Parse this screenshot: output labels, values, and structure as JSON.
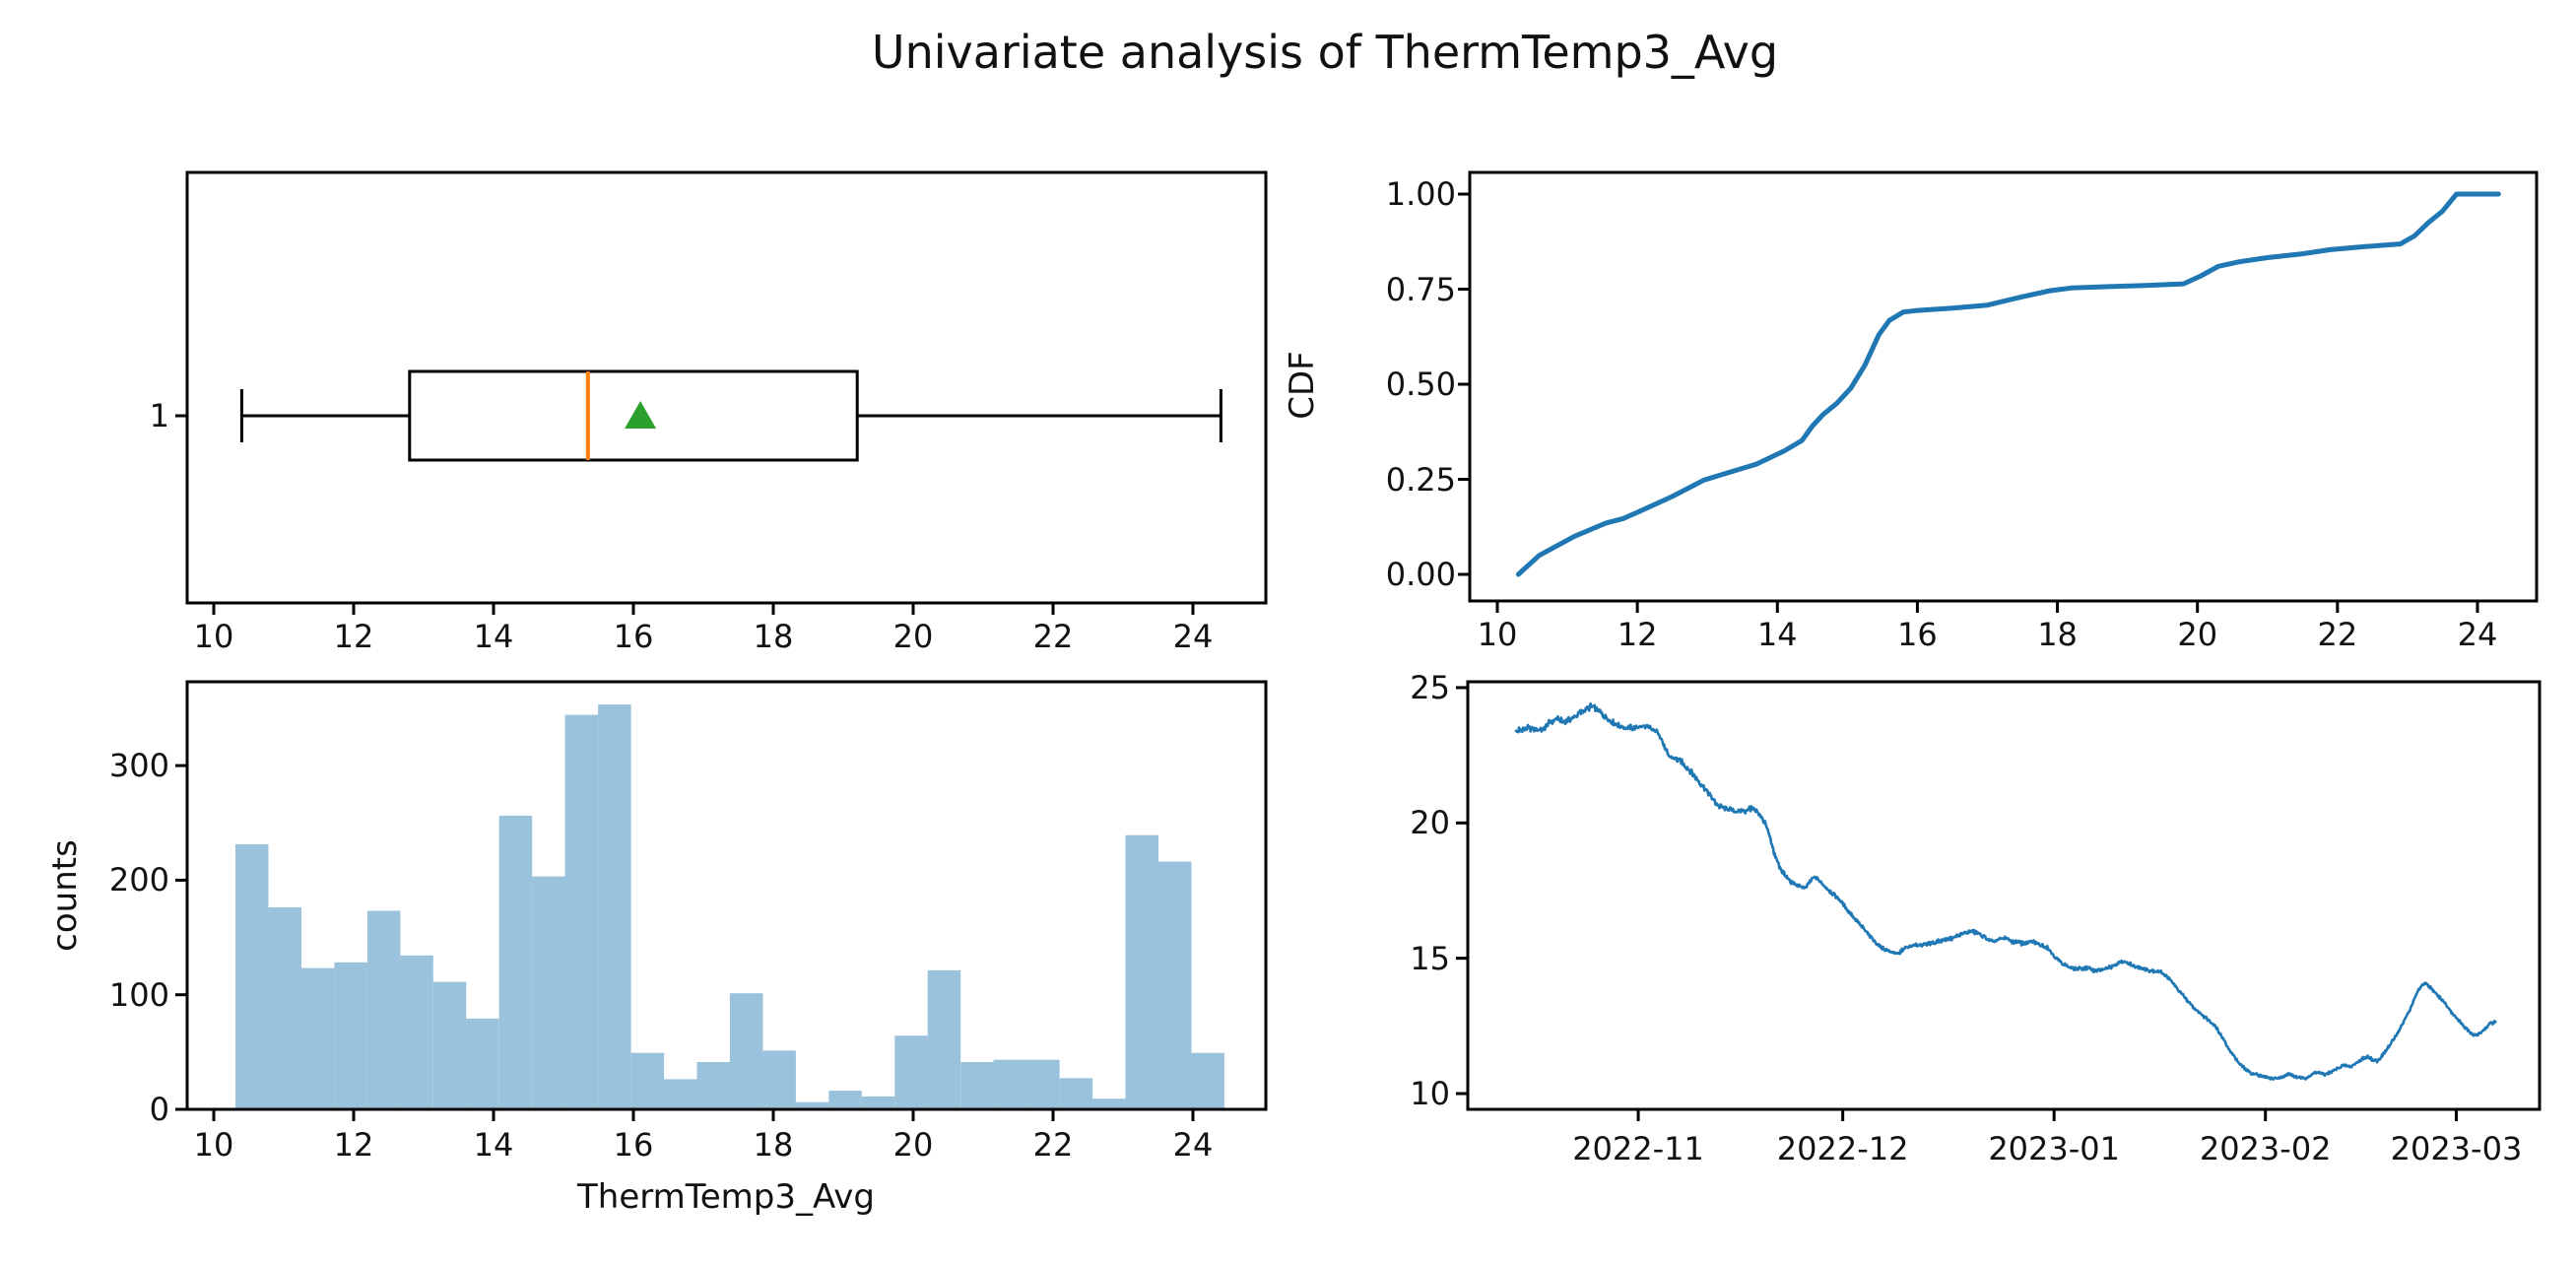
{
  "title": "Univariate analysis of ThermTemp3_Avg",
  "colors": {
    "line": "#1f77b4",
    "bar": "#9ac2dd",
    "median": "#ff7f0e",
    "mean": "#2ca02c",
    "axis": "#000000",
    "text": "#111111"
  },
  "chart_data": [
    {
      "id": "boxplot",
      "type": "boxplot",
      "position_label": "1",
      "whisker_low": 10.4,
      "q1": 12.8,
      "median": 15.35,
      "mean": 16.1,
      "q3": 19.2,
      "whisker_high": 24.4,
      "xticks": [
        10,
        12,
        14,
        16,
        18,
        20,
        22,
        24
      ],
      "xlim": [
        9.6,
        25.05
      ]
    },
    {
      "id": "cdf",
      "type": "line",
      "ylabel": "CDF",
      "yticks": [
        "0.00",
        "0.25",
        "0.50",
        "0.75",
        "1.00"
      ],
      "xticks": [
        10,
        12,
        14,
        16,
        18,
        20,
        22,
        24
      ],
      "xlim": [
        9.6,
        24.85
      ],
      "ylim": [
        -0.06,
        1.06
      ],
      "points": [
        [
          10.3,
          0.0
        ],
        [
          10.6,
          0.05
        ],
        [
          11.1,
          0.1
        ],
        [
          11.55,
          0.135
        ],
        [
          11.8,
          0.147
        ],
        [
          12.0,
          0.163
        ],
        [
          12.5,
          0.205
        ],
        [
          12.95,
          0.248
        ],
        [
          13.2,
          0.262
        ],
        [
          13.7,
          0.29
        ],
        [
          14.1,
          0.325
        ],
        [
          14.35,
          0.352
        ],
        [
          14.5,
          0.39
        ],
        [
          14.65,
          0.42
        ],
        [
          14.85,
          0.45
        ],
        [
          15.05,
          0.49
        ],
        [
          15.25,
          0.55
        ],
        [
          15.45,
          0.63
        ],
        [
          15.6,
          0.668
        ],
        [
          15.8,
          0.69
        ],
        [
          16.0,
          0.694
        ],
        [
          16.5,
          0.7
        ],
        [
          17.0,
          0.708
        ],
        [
          17.5,
          0.73
        ],
        [
          17.9,
          0.746
        ],
        [
          18.2,
          0.753
        ],
        [
          18.8,
          0.757
        ],
        [
          19.3,
          0.76
        ],
        [
          19.8,
          0.764
        ],
        [
          20.05,
          0.785
        ],
        [
          20.3,
          0.81
        ],
        [
          20.6,
          0.822
        ],
        [
          21.0,
          0.833
        ],
        [
          21.5,
          0.843
        ],
        [
          21.9,
          0.854
        ],
        [
          22.4,
          0.862
        ],
        [
          22.9,
          0.869
        ],
        [
          23.1,
          0.89
        ],
        [
          23.3,
          0.925
        ],
        [
          23.5,
          0.955
        ],
        [
          23.7,
          1.0
        ],
        [
          24.3,
          1.0
        ]
      ]
    },
    {
      "id": "histogram",
      "type": "bar",
      "ylabel": "counts",
      "xlabel": "ThermTemp3_Avg",
      "yticks": [
        0,
        100,
        200,
        300
      ],
      "xticks": [
        10,
        12,
        14,
        16,
        18,
        20,
        22,
        24
      ],
      "bin_start": 10.31,
      "bin_width": 0.4713,
      "counts": [
        230,
        175,
        122,
        127,
        172,
        133,
        110,
        78,
        255,
        202,
        343,
        352,
        48,
        25,
        40,
        100,
        50,
        5,
        15,
        10,
        63,
        120,
        40,
        42,
        42,
        26,
        8,
        238,
        215,
        48
      ],
      "ylim": [
        0,
        373
      ]
    },
    {
      "id": "timeseries",
      "type": "line",
      "yticks": [
        10,
        15,
        20,
        25
      ],
      "xtick_labels": [
        "2022-11",
        "2022-12",
        "2023-01",
        "2023-02",
        "2023-03"
      ],
      "xtick_days": [
        18,
        48,
        79,
        110,
        138
      ],
      "start_date": "2022-10-14",
      "ylim": [
        9.4,
        25.2
      ],
      "points": [
        [
          0,
          23.4
        ],
        [
          2,
          23.5
        ],
        [
          4,
          23.45
        ],
        [
          5,
          23.7
        ],
        [
          6,
          23.85
        ],
        [
          7,
          23.75
        ],
        [
          8.5,
          23.9
        ],
        [
          10,
          24.15
        ],
        [
          11,
          24.3
        ],
        [
          12,
          24.2
        ],
        [
          13,
          23.95
        ],
        [
          14,
          23.75
        ],
        [
          15,
          23.6
        ],
        [
          16.5,
          23.5
        ],
        [
          18,
          23.55
        ],
        [
          19,
          23.6
        ],
        [
          20,
          23.45
        ],
        [
          21,
          23.35
        ],
        [
          21.7,
          22.9
        ],
        [
          22.4,
          22.5
        ],
        [
          23.2,
          22.4
        ],
        [
          24.2,
          22.3
        ],
        [
          25.2,
          22.05
        ],
        [
          26,
          21.8
        ],
        [
          27,
          21.5
        ],
        [
          28,
          21.2
        ],
        [
          29,
          20.85
        ],
        [
          30,
          20.6
        ],
        [
          31.2,
          20.5
        ],
        [
          32.5,
          20.42
        ],
        [
          33.8,
          20.45
        ],
        [
          34.8,
          20.55
        ],
        [
          35.8,
          20.3
        ],
        [
          36.6,
          20.0
        ],
        [
          37.3,
          19.45
        ],
        [
          38,
          18.85
        ],
        [
          38.7,
          18.4
        ],
        [
          39.5,
          18.05
        ],
        [
          40.5,
          17.8
        ],
        [
          41.5,
          17.65
        ],
        [
          42.5,
          17.6
        ],
        [
          43.4,
          17.9
        ],
        [
          44.1,
          18.0
        ],
        [
          45,
          17.75
        ],
        [
          46,
          17.5
        ],
        [
          47,
          17.3
        ],
        [
          48,
          17.0
        ],
        [
          49,
          16.7
        ],
        [
          50,
          16.4
        ],
        [
          51,
          16.1
        ],
        [
          52,
          15.8
        ],
        [
          53,
          15.55
        ],
        [
          54,
          15.35
        ],
        [
          55,
          15.25
        ],
        [
          56,
          15.15
        ],
        [
          57,
          15.35
        ],
        [
          58,
          15.45
        ],
        [
          59.5,
          15.5
        ],
        [
          61,
          15.55
        ],
        [
          62.5,
          15.65
        ],
        [
          64,
          15.75
        ],
        [
          65.5,
          15.9
        ],
        [
          67,
          16.0
        ],
        [
          68,
          15.9
        ],
        [
          69,
          15.75
        ],
        [
          70,
          15.6
        ],
        [
          71,
          15.7
        ],
        [
          72,
          15.75
        ],
        [
          73,
          15.6
        ],
        [
          74.5,
          15.55
        ],
        [
          76,
          15.6
        ],
        [
          77,
          15.5
        ],
        [
          78,
          15.4
        ],
        [
          79,
          15.1
        ],
        [
          80,
          14.85
        ],
        [
          81,
          14.7
        ],
        [
          82,
          14.6
        ],
        [
          83.5,
          14.65
        ],
        [
          85,
          14.55
        ],
        [
          86.5,
          14.6
        ],
        [
          88,
          14.75
        ],
        [
          89,
          14.9
        ],
        [
          90.5,
          14.75
        ],
        [
          92,
          14.6
        ],
        [
          93.5,
          14.55
        ],
        [
          95,
          14.45
        ],
        [
          96,
          14.2
        ],
        [
          97,
          13.9
        ],
        [
          98,
          13.6
        ],
        [
          99,
          13.3
        ],
        [
          100,
          13.05
        ],
        [
          101,
          12.85
        ],
        [
          102,
          12.65
        ],
        [
          102.8,
          12.45
        ],
        [
          103.6,
          12.1
        ],
        [
          104.4,
          11.75
        ],
        [
          105.2,
          11.45
        ],
        [
          106,
          11.15
        ],
        [
          107,
          10.9
        ],
        [
          108,
          10.75
        ],
        [
          109.5,
          10.65
        ],
        [
          111,
          10.55
        ],
        [
          112.5,
          10.62
        ],
        [
          113.5,
          10.72
        ],
        [
          114.5,
          10.62
        ],
        [
          115.5,
          10.55
        ],
        [
          116.5,
          10.65
        ],
        [
          117.5,
          10.8
        ],
        [
          118.5,
          10.7
        ],
        [
          119.5,
          10.78
        ],
        [
          120.5,
          10.92
        ],
        [
          121.5,
          11.05
        ],
        [
          122.5,
          11.0
        ],
        [
          123.5,
          11.15
        ],
        [
          124.3,
          11.3
        ],
        [
          125,
          11.35
        ],
        [
          125.8,
          11.25
        ],
        [
          126.5,
          11.2
        ],
        [
          127.3,
          11.45
        ],
        [
          128,
          11.7
        ],
        [
          128.8,
          12.0
        ],
        [
          129.5,
          12.3
        ],
        [
          130.3,
          12.65
        ],
        [
          131,
          13.0
        ],
        [
          131.7,
          13.4
        ],
        [
          132.4,
          13.8
        ],
        [
          133,
          14.0
        ],
        [
          133.6,
          14.05
        ],
        [
          134.3,
          13.9
        ],
        [
          135.2,
          13.65
        ],
        [
          136.1,
          13.4
        ],
        [
          137,
          13.1
        ],
        [
          138,
          12.8
        ],
        [
          139,
          12.5
        ],
        [
          140,
          12.25
        ],
        [
          140.8,
          12.15
        ],
        [
          141.6,
          12.25
        ],
        [
          142.4,
          12.45
        ],
        [
          143.1,
          12.6
        ],
        [
          143.8,
          12.65
        ]
      ]
    }
  ]
}
